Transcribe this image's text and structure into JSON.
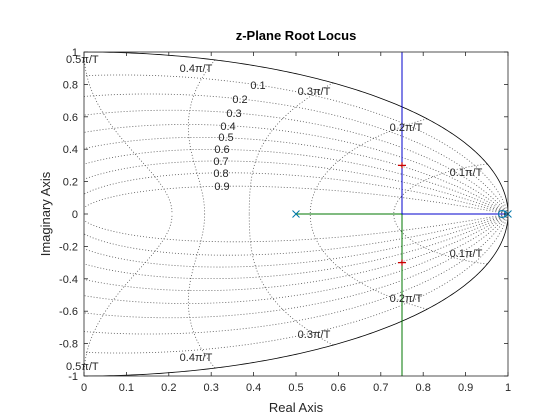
{
  "chart_data": {
    "type": "line",
    "title": "z-Plane Root Locus",
    "xlabel": "Real Axis",
    "ylabel": "Imaginary Axis",
    "xlim": [
      0,
      1
    ],
    "ylim": [
      -1,
      1
    ],
    "x_ticks": [
      "0",
      "0.1",
      "0.2",
      "0.3",
      "0.4",
      "0.5",
      "0.6",
      "0.7",
      "0.8",
      "0.9",
      "1"
    ],
    "y_ticks": [
      "1",
      "0.8",
      "0.6",
      "0.4",
      "0.2",
      "0",
      "-0.2",
      "-0.4",
      "-0.6",
      "-0.8",
      "-1"
    ],
    "grid": true,
    "zeta_values": [
      0.1,
      0.2,
      0.3,
      0.4,
      0.5,
      0.6,
      0.7,
      0.8,
      0.9
    ],
    "zeta_labels": [
      "0.1",
      "0.2",
      "0.3",
      "0.4",
      "0.5",
      "0.6",
      "0.7",
      "0.8",
      "0.9"
    ],
    "wn_values": [
      0.1,
      0.2,
      0.3,
      0.4,
      0.5
    ],
    "wn_labels": [
      "0.1π/T",
      "0.2π/T",
      "0.3π/T",
      "0.4π/T",
      "0.5π/T"
    ],
    "unit_circle": true,
    "poles": [
      {
        "x": 0.5,
        "y": 0
      },
      {
        "x": 1.0,
        "y": 0
      }
    ],
    "zeros": [
      {
        "x": 1.0,
        "y": 0
      }
    ],
    "series": [
      {
        "color": "#007700",
        "points": [
          [
            0.5,
            0
          ],
          [
            0.75,
            0
          ]
        ]
      },
      {
        "color": "#007700",
        "points": [
          [
            0.75,
            0
          ],
          [
            0.75,
            -1
          ]
        ]
      },
      {
        "color": "#0000cc",
        "points": [
          [
            1.0,
            0
          ],
          [
            0.75,
            0
          ]
        ]
      },
      {
        "color": "#0000cc",
        "points": [
          [
            0.75,
            0
          ],
          [
            0.75,
            1
          ]
        ]
      }
    ],
    "selected_points": [
      {
        "x": 0.75,
        "y": 0.3
      },
      {
        "x": 0.75,
        "y": -0.3
      }
    ],
    "colors": {
      "grid": "#555555",
      "circle": "#000000",
      "marker": "#0077aa",
      "selected": "#cc0000"
    }
  }
}
